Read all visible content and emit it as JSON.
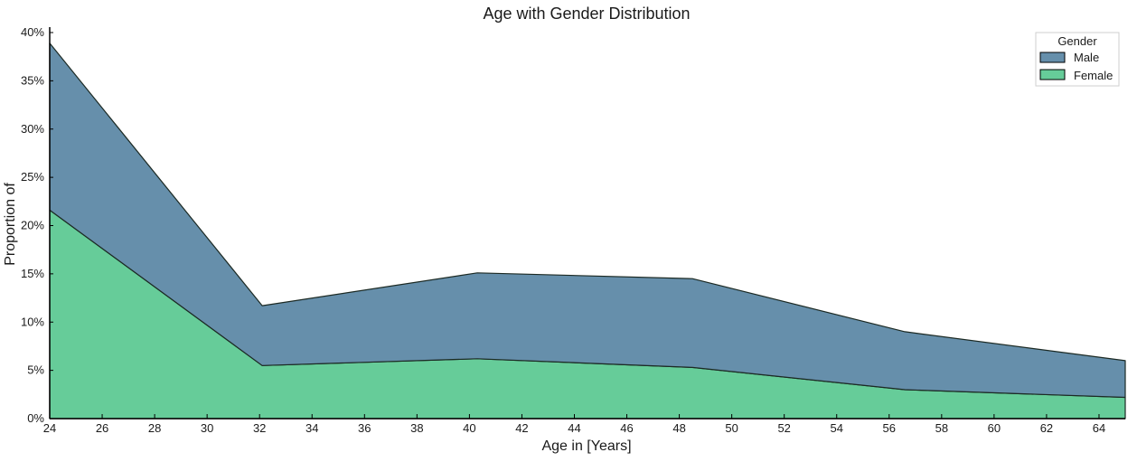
{
  "chart_data": {
    "type": "area",
    "stacked": true,
    "title": "Age with Gender Distribution",
    "xlabel": "Age in [Years]",
    "ylabel": "Proportion of",
    "x": [
      24,
      32.1,
      40.3,
      48.5,
      56.6,
      65
    ],
    "series": [
      {
        "name": "Female",
        "color": "#66CC99",
        "values": [
          21.6,
          5.5,
          6.2,
          5.3,
          3.0,
          2.2
        ]
      },
      {
        "name": "Male",
        "color": "#668FAB",
        "values": [
          17.3,
          6.2,
          8.9,
          9.2,
          6.0,
          3.8
        ]
      }
    ],
    "xlim": [
      24,
      65
    ],
    "ylim": [
      0,
      40
    ],
    "xticks": [
      24,
      26,
      28,
      30,
      32,
      34,
      36,
      38,
      40,
      42,
      44,
      46,
      48,
      50,
      52,
      54,
      56,
      58,
      60,
      62,
      64
    ],
    "yticks": [
      0,
      5,
      10,
      15,
      20,
      25,
      30,
      35,
      40
    ],
    "ytick_labels": [
      "0%",
      "5%",
      "10%",
      "15%",
      "20%",
      "25%",
      "30%",
      "35%",
      "40%"
    ],
    "grid": false,
    "legend": {
      "title": "Gender",
      "placement": "top-right",
      "entries": [
        "Male",
        "Female"
      ]
    }
  }
}
